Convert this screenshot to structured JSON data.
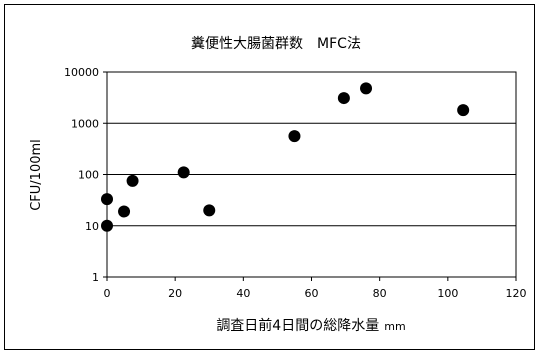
{
  "chart_data": {
    "type": "scatter",
    "title": "糞便性大腸菌群数　MFC法",
    "xlabel": "調査日前4日間の総降水量",
    "xlabel_unit": "mm",
    "ylabel": "CFU/100ml",
    "xlim": [
      0,
      120
    ],
    "ylim": [
      1,
      10000
    ],
    "yscale": "log",
    "x_ticks": [
      "0",
      "20",
      "40",
      "60",
      "80",
      "100",
      "120"
    ],
    "y_ticks": [
      "1",
      "10",
      "100",
      "1000",
      "10000"
    ],
    "grid": "horizontal",
    "legend": "none",
    "marker_color": "#000000",
    "points": [
      {
        "x": 0,
        "y": 33
      },
      {
        "x": 0,
        "y": 10
      },
      {
        "x": 5,
        "y": 19
      },
      {
        "x": 7.5,
        "y": 75
      },
      {
        "x": 22.5,
        "y": 110
      },
      {
        "x": 30,
        "y": 20
      },
      {
        "x": 55,
        "y": 560
      },
      {
        "x": 69.5,
        "y": 3100
      },
      {
        "x": 76,
        "y": 4800
      },
      {
        "x": 104.5,
        "y": 1800
      }
    ]
  }
}
